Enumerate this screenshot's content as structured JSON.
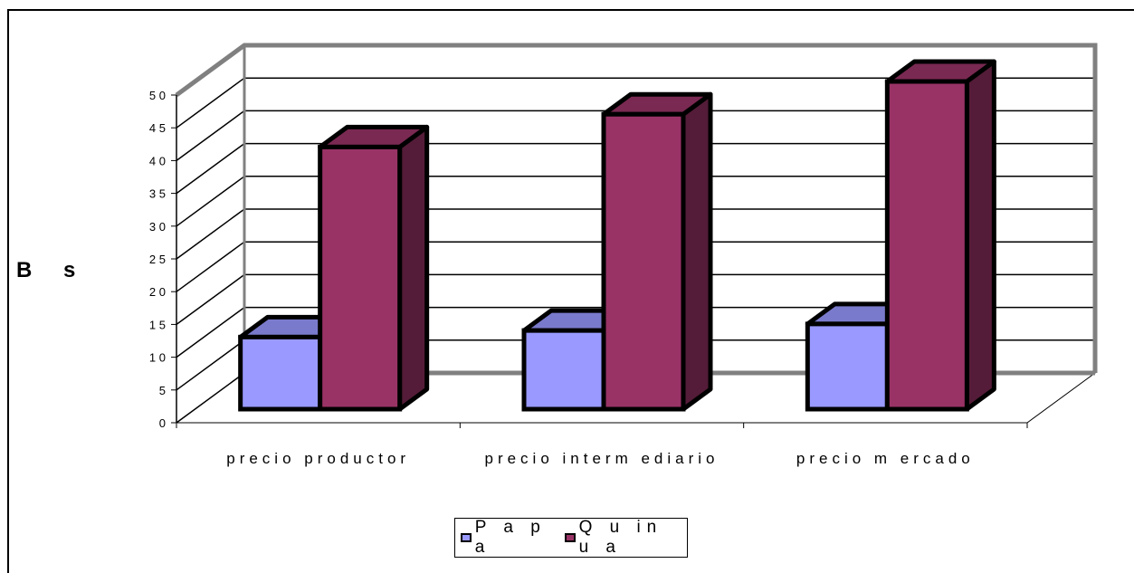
{
  "chart_data": {
    "type": "bar",
    "categories": [
      "precio productor",
      "precio interm ediario",
      "precio m ercado"
    ],
    "series": [
      {
        "name": "P a p a",
        "values": [
          11,
          12,
          13
        ],
        "color": "#9999ff"
      },
      {
        "name": "Q u in u a",
        "values": [
          40,
          45,
          50
        ],
        "color": "#993366"
      }
    ],
    "ylabel": "B s",
    "ylim": [
      0,
      50
    ],
    "yticks": [
      "0",
      "5",
      "1 0",
      "1 5",
      "2 0",
      "2 5",
      "3 0",
      "3 5",
      "4 0",
      "4 5",
      "5 0"
    ],
    "grid": true,
    "legend_position": "bottom"
  }
}
